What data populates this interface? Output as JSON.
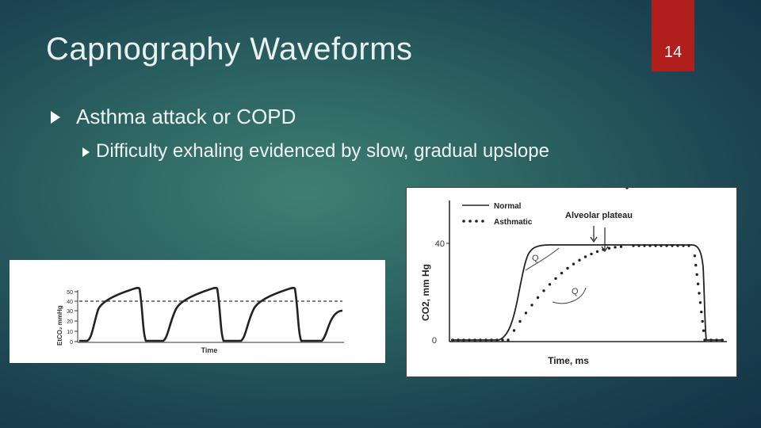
{
  "slide": {
    "title": "Capnography Waveforms",
    "page_number": "14",
    "bullet_level1": "Asthma attack or COPD",
    "bullet_level2": "Difficulty exhaling evidenced by slow, gradual upslope"
  },
  "figure_left": {
    "ylabel": "EtCO₂ mmHg",
    "xlabel": "Time",
    "ticks": [
      "50",
      "40",
      "30",
      "20",
      "10",
      "0"
    ]
  },
  "figure_right": {
    "ylabel": "CO2, mm Hg",
    "xlabel": "Time, ms",
    "tick_40": "40",
    "tick_0": "0",
    "legend_normal": "Normal",
    "legend_asthmatic": "Asthmatic",
    "annotation_plateau": "Alveolar plateau",
    "annotation_q1": "Q",
    "annotation_q2": "Q"
  },
  "colors": {
    "accent_red": "#b11e1e",
    "background": "#2c6462"
  }
}
